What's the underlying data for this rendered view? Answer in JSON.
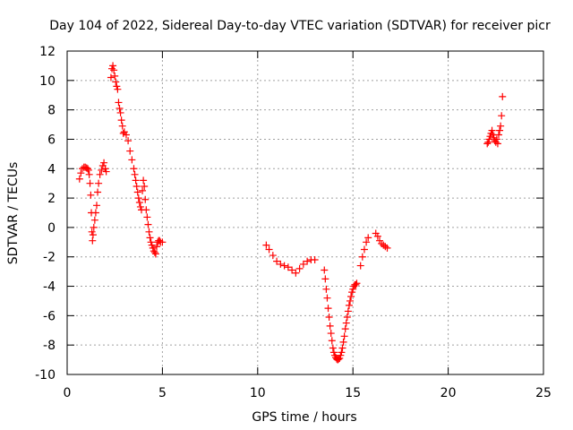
{
  "chart_data": {
    "type": "scatter",
    "title": "Day 104 of 2022, Sidereal Day-to-day VTEC variation (SDTVAR) for receiver picr",
    "xlabel": "GPS time / hours",
    "ylabel": "SDTVAR / TECUs",
    "xlim": [
      0,
      25
    ],
    "ylim": [
      -10,
      12
    ],
    "xticks": [
      0,
      5,
      10,
      15,
      20,
      25
    ],
    "yticks": [
      -10,
      -8,
      -6,
      -4,
      -2,
      0,
      2,
      4,
      6,
      8,
      10,
      12
    ],
    "grid": true,
    "marker": "+",
    "colors": {
      "series": "#ff0000",
      "grid": "#a0a0a0",
      "axis": "#000000"
    },
    "series": [
      {
        "name": "SDTVAR",
        "x": [
          0.65,
          0.72,
          0.8,
          0.88,
          0.95,
          1.02,
          1.08,
          1.12,
          1.16,
          1.2,
          1.24,
          1.27,
          1.3,
          1.33,
          1.36,
          1.4,
          1.45,
          1.5,
          1.55,
          1.6,
          1.65,
          1.72,
          1.8,
          1.87,
          1.93,
          2.0,
          2.05,
          2.3,
          2.35,
          2.4,
          2.45,
          2.5,
          2.55,
          2.6,
          2.65,
          2.7,
          2.75,
          2.8,
          2.85,
          2.9,
          2.95,
          3.0,
          3.1,
          3.2,
          3.3,
          3.4,
          3.5,
          3.55,
          3.6,
          3.65,
          3.7,
          3.75,
          3.8,
          3.85,
          3.9,
          3.95,
          4.0,
          4.05,
          4.1,
          4.15,
          4.2,
          4.25,
          4.3,
          4.35,
          4.4,
          4.45,
          4.5,
          4.55,
          4.6,
          4.65,
          4.7,
          4.75,
          4.8,
          4.85,
          4.9,
          5.0,
          10.45,
          10.6,
          10.8,
          11.0,
          11.2,
          11.4,
          11.6,
          11.8,
          12.0,
          12.2,
          12.4,
          12.6,
          12.8,
          13.0,
          13.5,
          13.55,
          13.6,
          13.65,
          13.7,
          13.75,
          13.8,
          13.85,
          13.9,
          13.95,
          14.0,
          14.05,
          14.1,
          14.15,
          14.2,
          14.25,
          14.3,
          14.35,
          14.4,
          14.45,
          14.5,
          14.55,
          14.6,
          14.65,
          14.7,
          14.75,
          14.8,
          14.85,
          14.9,
          14.95,
          15.0,
          15.05,
          15.1,
          15.15,
          15.2,
          15.4,
          15.5,
          15.6,
          15.7,
          15.8,
          16.2,
          16.3,
          16.4,
          16.5,
          16.6,
          16.7,
          16.8,
          22.05,
          22.1,
          22.15,
          22.2,
          22.25,
          22.3,
          22.35,
          22.4,
          22.45,
          22.5,
          22.55,
          22.6,
          22.65,
          22.7,
          22.75,
          22.8,
          22.85
        ],
        "y": [
          3.3,
          3.7,
          4.0,
          4.1,
          4.1,
          4.05,
          4.0,
          3.9,
          3.6,
          3.0,
          2.2,
          1.0,
          -0.3,
          -0.9,
          -0.5,
          0.0,
          0.5,
          1.0,
          1.5,
          2.4,
          3.0,
          3.6,
          3.9,
          4.2,
          4.4,
          4.0,
          3.8,
          10.2,
          10.8,
          11.0,
          10.7,
          10.3,
          9.9,
          9.6,
          9.4,
          8.5,
          8.1,
          7.8,
          7.3,
          6.9,
          6.4,
          6.5,
          6.3,
          5.9,
          5.2,
          4.6,
          4.0,
          3.6,
          3.2,
          2.8,
          2.4,
          2.0,
          1.7,
          1.4,
          1.2,
          2.5,
          3.2,
          2.8,
          1.9,
          1.2,
          0.7,
          0.2,
          -0.3,
          -0.7,
          -1.0,
          -1.2,
          -1.4,
          -1.6,
          -1.7,
          -1.8,
          -1.3,
          -1.0,
          -0.9,
          -0.9,
          -1.0,
          -1.0,
          -1.2,
          -1.5,
          -1.9,
          -2.3,
          -2.5,
          -2.6,
          -2.7,
          -2.9,
          -3.1,
          -2.8,
          -2.5,
          -2.3,
          -2.2,
          -2.2,
          -2.9,
          -3.5,
          -4.2,
          -4.8,
          -5.5,
          -6.1,
          -6.7,
          -7.2,
          -7.7,
          -8.2,
          -8.5,
          -8.7,
          -8.85,
          -8.95,
          -9.0,
          -8.95,
          -8.9,
          -8.7,
          -8.5,
          -8.2,
          -7.8,
          -7.4,
          -6.9,
          -6.5,
          -6.1,
          -5.7,
          -5.3,
          -5.0,
          -4.7,
          -4.4,
          -4.2,
          -4.0,
          -3.9,
          -3.9,
          -3.8,
          -2.6,
          -2.0,
          -1.5,
          -1.0,
          -0.7,
          -0.4,
          -0.6,
          -0.9,
          -1.1,
          -1.2,
          -1.3,
          -1.4,
          5.7,
          5.8,
          6.0,
          6.2,
          6.4,
          6.6,
          6.3,
          6.1,
          5.9,
          5.8,
          6.0,
          5.7,
          6.3,
          6.6,
          6.9,
          7.6,
          8.9
        ]
      }
    ]
  }
}
